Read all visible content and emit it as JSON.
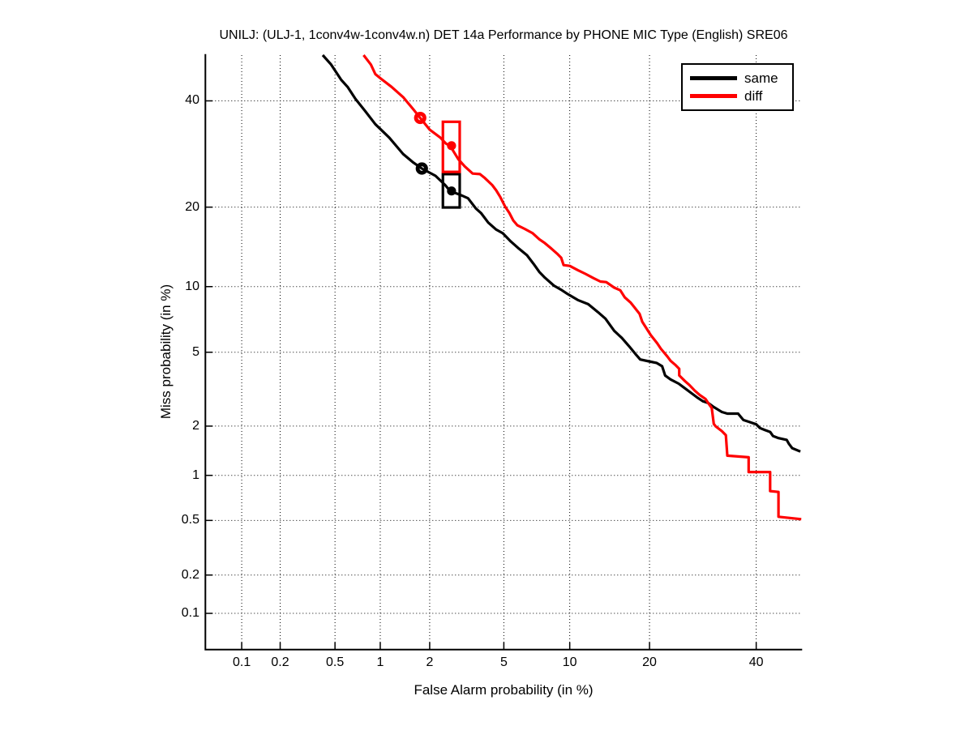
{
  "figure": {
    "background": "#ffffff",
    "grid_color": "#000000",
    "axis_color": "#000000"
  },
  "chart_data": {
    "type": "line",
    "variant": "DET curve (normal-deviate / probit scale on both axes)",
    "title": "UNILJ: (ULJ-1, 1conv4w-1conv4w.n) DET 14a Performance by PHONE MIC Type (English) SRE06",
    "xlabel": "False Alarm probability (in %)",
    "ylabel": "Miss probability (in %)",
    "axis_min_percent": 0.05,
    "axis_max_percent": 50,
    "x_ticks": [
      0.1,
      0.2,
      0.5,
      1,
      2,
      5,
      10,
      20,
      40
    ],
    "y_ticks": [
      0.1,
      0.2,
      0.5,
      1,
      2,
      5,
      10,
      20,
      40
    ],
    "grid": "dotted",
    "legend": {
      "position": "top-right",
      "entries": [
        {
          "label": "same",
          "color": "#000000"
        },
        {
          "label": "diff",
          "color": "#ff0000"
        }
      ]
    },
    "series": [
      {
        "name": "same",
        "color": "#000000",
        "points_fa_miss_percent": [
          [
            0.41,
            50
          ],
          [
            0.47,
            47.9
          ],
          [
            0.55,
            44.6
          ],
          [
            0.61,
            43.0
          ],
          [
            0.69,
            40.4
          ],
          [
            0.8,
            37.8
          ],
          [
            0.93,
            35.1
          ],
          [
            1.14,
            32.4
          ],
          [
            1.39,
            29.2
          ],
          [
            1.6,
            27.6
          ],
          [
            1.8,
            26.5
          ],
          [
            2.16,
            25.2
          ],
          [
            2.45,
            23.6
          ],
          [
            2.61,
            22.6
          ],
          [
            2.95,
            22.0
          ],
          [
            3.27,
            21.4
          ],
          [
            3.6,
            19.8
          ],
          [
            3.83,
            19.1
          ],
          [
            4.17,
            17.7
          ],
          [
            4.58,
            16.7
          ],
          [
            4.94,
            16.2
          ],
          [
            5.41,
            15.1
          ],
          [
            5.92,
            14.2
          ],
          [
            6.46,
            13.4
          ],
          [
            6.93,
            12.4
          ],
          [
            7.36,
            11.5
          ],
          [
            7.8,
            10.9
          ],
          [
            8.55,
            10.1
          ],
          [
            9.27,
            9.65
          ],
          [
            9.8,
            9.3
          ],
          [
            10.8,
            8.76
          ],
          [
            11.9,
            8.4
          ],
          [
            13.0,
            7.74
          ],
          [
            13.9,
            7.23
          ],
          [
            15.0,
            6.35
          ],
          [
            16.0,
            5.87
          ],
          [
            17.0,
            5.35
          ],
          [
            17.9,
            4.9
          ],
          [
            18.6,
            4.6
          ],
          [
            19.9,
            4.5
          ],
          [
            21.1,
            4.42
          ],
          [
            22.0,
            4.25
          ],
          [
            22.5,
            3.81
          ],
          [
            23.4,
            3.63
          ],
          [
            24.8,
            3.45
          ],
          [
            25.7,
            3.29
          ],
          [
            27.1,
            3.06
          ],
          [
            28.1,
            2.91
          ],
          [
            29.2,
            2.77
          ],
          [
            30.2,
            2.71
          ],
          [
            31.3,
            2.57
          ],
          [
            32.9,
            2.41
          ],
          [
            34.0,
            2.36
          ],
          [
            36.2,
            2.36
          ],
          [
            37.3,
            2.17
          ],
          [
            38.4,
            2.12
          ],
          [
            40.0,
            2.05
          ],
          [
            40.8,
            1.95
          ],
          [
            41.8,
            1.9
          ],
          [
            43.0,
            1.85
          ],
          [
            43.6,
            1.75
          ],
          [
            44.8,
            1.7
          ],
          [
            46.6,
            1.66
          ],
          [
            47.1,
            1.57
          ],
          [
            47.8,
            1.48
          ],
          [
            49.6,
            1.41
          ]
        ],
        "opt_point_circle_fa_miss": [
          1.8,
          26.5
        ],
        "act_box_fa_range": [
          2.38,
          2.95
        ],
        "act_box_miss_range": [
          19.95,
          25.5
        ],
        "act_point_dot_fa_miss": [
          2.66,
          22.6
        ]
      },
      {
        "name": "diff",
        "color": "#ff0000",
        "points_fa_miss_percent": [
          [
            0.78,
            50
          ],
          [
            0.87,
            47.9
          ],
          [
            0.93,
            45.8
          ],
          [
            1.01,
            44.8
          ],
          [
            1.18,
            43.0
          ],
          [
            1.39,
            40.8
          ],
          [
            1.6,
            38.2
          ],
          [
            1.76,
            36.4
          ],
          [
            2.0,
            34.0
          ],
          [
            2.3,
            32.4
          ],
          [
            2.48,
            31.2
          ],
          [
            2.61,
            30.8
          ],
          [
            2.9,
            28.2
          ],
          [
            3.14,
            26.9
          ],
          [
            3.46,
            25.6
          ],
          [
            3.78,
            25.5
          ],
          [
            4.01,
            24.8
          ],
          [
            4.37,
            23.6
          ],
          [
            4.58,
            22.7
          ],
          [
            4.8,
            21.6
          ],
          [
            5.07,
            20.1
          ],
          [
            5.32,
            19.1
          ],
          [
            5.56,
            18.0
          ],
          [
            5.82,
            17.3
          ],
          [
            6.3,
            16.8
          ],
          [
            6.87,
            16.2
          ],
          [
            7.36,
            15.4
          ],
          [
            7.8,
            14.9
          ],
          [
            8.34,
            14.2
          ],
          [
            8.82,
            13.6
          ],
          [
            9.2,
            13.1
          ],
          [
            9.42,
            12.25
          ],
          [
            10.0,
            12.16
          ],
          [
            10.8,
            11.7
          ],
          [
            11.6,
            11.3
          ],
          [
            12.5,
            10.85
          ],
          [
            13.3,
            10.5
          ],
          [
            14.0,
            10.44
          ],
          [
            15.0,
            9.9
          ],
          [
            15.8,
            9.65
          ],
          [
            16.4,
            9.0
          ],
          [
            17.2,
            8.55
          ],
          [
            17.8,
            8.1
          ],
          [
            18.5,
            7.6
          ],
          [
            18.9,
            7.0
          ],
          [
            20.2,
            6.06
          ],
          [
            21.2,
            5.54
          ],
          [
            21.8,
            5.2
          ],
          [
            22.9,
            4.75
          ],
          [
            23.4,
            4.53
          ],
          [
            24.2,
            4.32
          ],
          [
            24.9,
            4.12
          ],
          [
            24.9,
            3.81
          ],
          [
            25.9,
            3.56
          ],
          [
            26.7,
            3.39
          ],
          [
            27.7,
            3.16
          ],
          [
            28.6,
            3.0
          ],
          [
            29.7,
            2.85
          ],
          [
            30.2,
            2.71
          ],
          [
            30.9,
            2.54
          ],
          [
            31.3,
            2.06
          ],
          [
            31.7,
            1.99
          ],
          [
            32.9,
            1.87
          ],
          [
            33.7,
            1.77
          ],
          [
            34.0,
            1.33
          ],
          [
            38.4,
            1.3
          ],
          [
            38.4,
            1.05
          ],
          [
            43.0,
            1.05
          ],
          [
            43.0,
            0.79
          ],
          [
            44.8,
            0.78
          ],
          [
            44.8,
            0.53
          ],
          [
            49.8,
            0.51
          ]
        ],
        "opt_point_circle_fa_miss": [
          1.76,
          36.4
        ],
        "act_box_fa_range": [
          2.38,
          2.95
        ],
        "act_box_miss_range": [
          25.9,
          35.6
        ],
        "act_point_dot_fa_miss": [
          2.66,
          30.8
        ]
      }
    ]
  }
}
